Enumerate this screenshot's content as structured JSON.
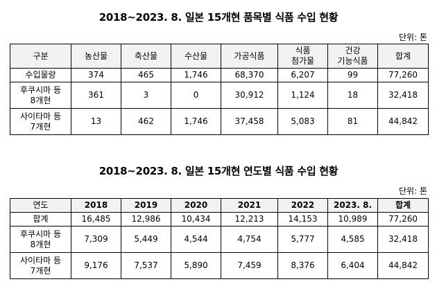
{
  "section1": {
    "title": "2018~2023. 8. 일본 15개현 품목별 식품 수입 현황",
    "unit": "단위: 톤",
    "headers": [
      "구분",
      "농산물",
      "축산물",
      "수산물",
      "가공식품",
      "식품\n첨가물",
      "건강\n기능식품",
      "합계"
    ],
    "rows": [
      {
        "label": "수입물량",
        "values": [
          "374",
          "465",
          "1,746",
          "68,370",
          "6,207",
          "99",
          "77,260"
        ]
      },
      {
        "label": "후쿠시마 등\n8개현",
        "values": [
          "361",
          "3",
          "0",
          "30,912",
          "1,124",
          "18",
          "32,418"
        ]
      },
      {
        "label": "사이타마 등\n7개현",
        "values": [
          "13",
          "462",
          "1,746",
          "37,458",
          "5,083",
          "81",
          "44,842"
        ]
      }
    ]
  },
  "section2": {
    "title": "2018~2023. 8. 일본 15개현 연도별 식품 수입 현황",
    "unit": "단위: 톤",
    "headers": [
      "연도",
      "2018",
      "2019",
      "2020",
      "2021",
      "2022",
      "2023. 8.",
      "합계"
    ],
    "rows": [
      {
        "label": "합계",
        "values": [
          "16,485",
          "12,986",
          "10,434",
          "12,213",
          "14,153",
          "10,989",
          "77,260"
        ]
      },
      {
        "label": "후쿠시마 등\n8개현",
        "values": [
          "7,309",
          "5,449",
          "4,544",
          "4,754",
          "5,777",
          "4,585",
          "32,418"
        ]
      },
      {
        "label": "사이타마 등\n7개현",
        "values": [
          "9,176",
          "7,537",
          "5,890",
          "7,459",
          "8,376",
          "6,404",
          "44,842"
        ]
      }
    ]
  }
}
